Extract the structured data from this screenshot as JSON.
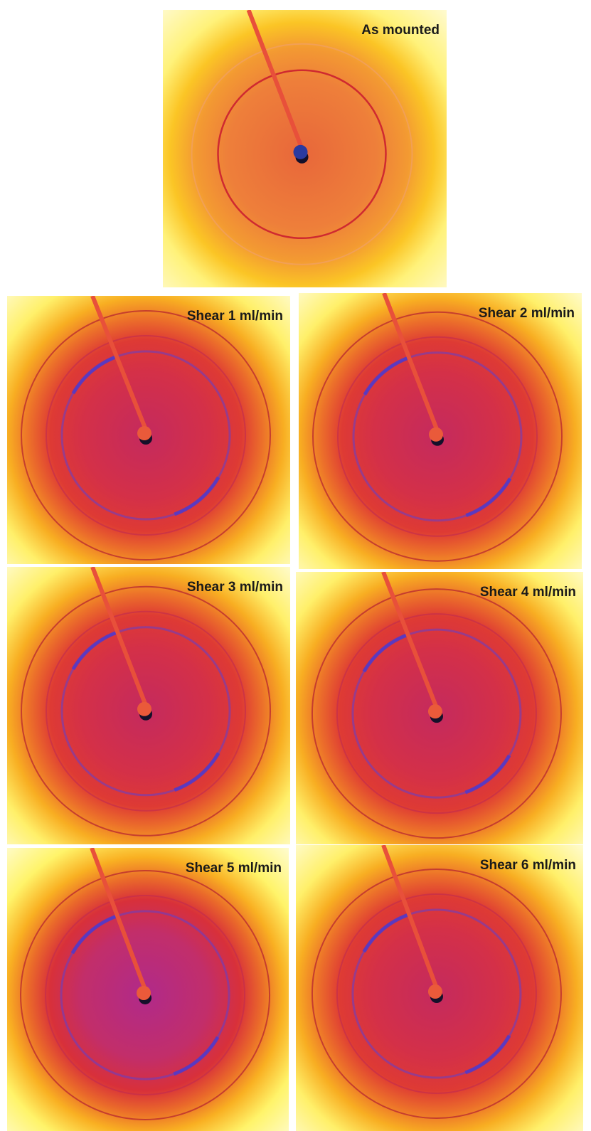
{
  "panels": [
    {
      "label": "As mounted"
    },
    {
      "label": "Shear 1 ml/min"
    },
    {
      "label": "Shear 2 ml/min"
    },
    {
      "label": "Shear 3 ml/min"
    },
    {
      "label": "Shear 4 ml/min"
    },
    {
      "label": "Shear 5 ml/min"
    },
    {
      "label": "Shear 6 ml/min"
    }
  ]
}
